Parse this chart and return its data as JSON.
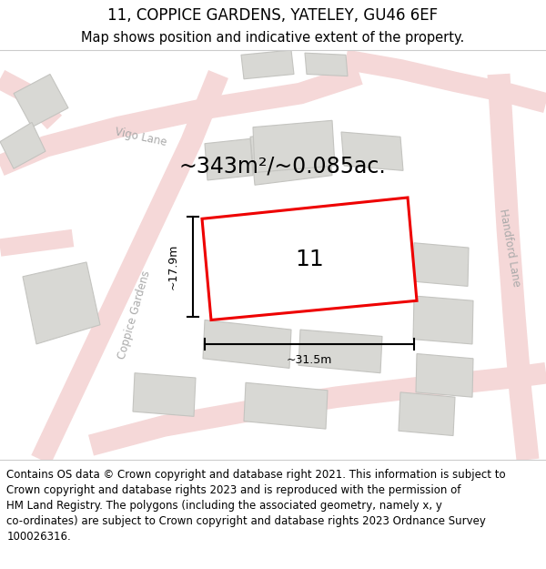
{
  "title": "11, COPPICE GARDENS, YATELEY, GU46 6EF",
  "subtitle": "Map shows position and indicative extent of the property.",
  "footer_line1": "Contains OS data © Crown copyright and database right 2021. This information is subject to",
  "footer_line2": "Crown copyright and database rights 2023 and is reproduced with the permission of",
  "footer_line3": "HM Land Registry. The polygons (including the associated geometry, namely x, y",
  "footer_line4": "co-ordinates) are subject to Crown copyright and database rights 2023 Ordnance Survey",
  "footer_line5": "100026316.",
  "area_text": "~343m²/~0.085ac.",
  "label_17_9": "~17.9m",
  "label_31_5": "~31.5m",
  "number_label": "11",
  "bg_color": "#f0f0ee",
  "road_fill": "#f5d8d8",
  "road_edge": "#e8c0c0",
  "building_fill": "#d8d8d4",
  "building_edge": "#c4c4c0",
  "highlight_edge": "#ee0000",
  "highlight_fill": "#ffffff",
  "road_label_color": "#aaaaaa",
  "title_fontsize": 12,
  "subtitle_fontsize": 10.5,
  "footer_fontsize": 8.5,
  "area_fontsize": 17,
  "number_fontsize": 18
}
